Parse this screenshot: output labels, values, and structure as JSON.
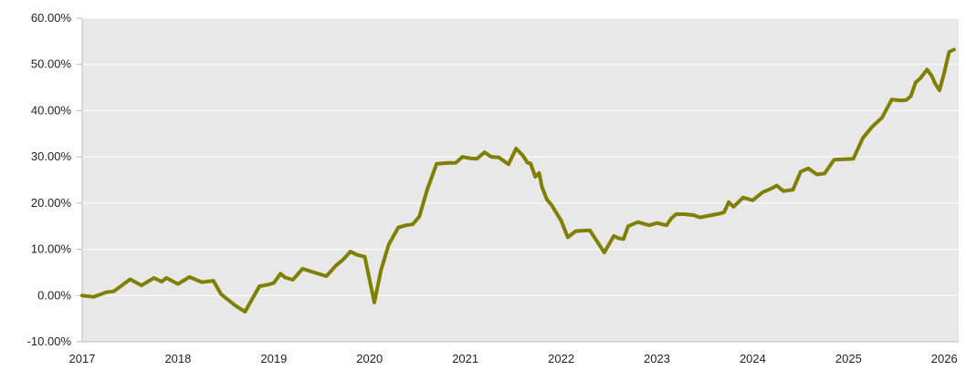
{
  "chart_data": {
    "type": "line",
    "title": "",
    "xlabel": "",
    "ylabel": "",
    "ylim": [
      -10,
      60
    ],
    "xlim": [
      2017.0,
      2026.15
    ],
    "grid": true,
    "legend": "none",
    "colors": {
      "line": "#808000",
      "plot_bg": "#e8e8e8",
      "grid": "#ffffff",
      "axis": "#bbbbbb"
    },
    "y_ticks": [
      {
        "value": 60,
        "label": "60.00%"
      },
      {
        "value": 50,
        "label": "50.00%"
      },
      {
        "value": 40,
        "label": "40.00%"
      },
      {
        "value": 30,
        "label": "30.00%"
      },
      {
        "value": 20,
        "label": "20.00%"
      },
      {
        "value": 10,
        "label": "10.00%"
      },
      {
        "value": 0,
        "label": "0.00%"
      },
      {
        "value": -10,
        "label": "-10.00%"
      }
    ],
    "x_ticks": [
      {
        "value": 2017,
        "label": "2017"
      },
      {
        "value": 2018,
        "label": "2018"
      },
      {
        "value": 2019,
        "label": "2019"
      },
      {
        "value": 2020,
        "label": "2020"
      },
      {
        "value": 2021,
        "label": "2021"
      },
      {
        "value": 2022,
        "label": "2022"
      },
      {
        "value": 2023,
        "label": "2023"
      },
      {
        "value": 2024,
        "label": "2024"
      },
      {
        "value": 2025,
        "label": "2025"
      },
      {
        "value": 2026,
        "label": "2026"
      }
    ],
    "series": [
      {
        "x": [
          2017.0,
          2017.12,
          2017.25,
          2017.33,
          2017.5,
          2017.62,
          2017.75,
          2017.83,
          2017.88,
          2018.0,
          2018.12,
          2018.25,
          2018.37,
          2018.45,
          2018.6,
          2018.7,
          2018.85,
          2018.95,
          2019.0,
          2019.07,
          2019.12,
          2019.2,
          2019.3,
          2019.45,
          2019.55,
          2019.65,
          2019.72,
          2019.8,
          2019.87,
          2019.95,
          2020.05,
          2020.12,
          2020.2,
          2020.3,
          2020.38,
          2020.45,
          2020.52,
          2020.6,
          2020.7,
          2020.82,
          2020.9,
          2020.97,
          2021.05,
          2021.12,
          2021.2,
          2021.27,
          2021.35,
          2021.45,
          2021.53,
          2021.6,
          2021.65,
          2021.68,
          2021.73,
          2021.77,
          2021.8,
          2021.85,
          2021.9,
          2022.0,
          2022.07,
          2022.15,
          2022.2,
          2022.3,
          2022.45,
          2022.55,
          2022.6,
          2022.65,
          2022.7,
          2022.8,
          2022.92,
          2023.0,
          2023.1,
          2023.15,
          2023.2,
          2023.28,
          2023.38,
          2023.45,
          2023.55,
          2023.65,
          2023.7,
          2023.75,
          2023.8,
          2023.9,
          2024.0,
          2024.1,
          2024.2,
          2024.25,
          2024.32,
          2024.42,
          2024.5,
          2024.58,
          2024.67,
          2024.75,
          2024.85,
          2024.95,
          2025.05,
          2025.15,
          2025.25,
          2025.35,
          2025.45,
          2025.55,
          2025.6,
          2025.65,
          2025.7,
          2025.75,
          2025.82,
          2025.87,
          2025.9,
          2025.95,
          2026.0,
          2026.05,
          2026.1
        ],
        "values": [
          0.0,
          -0.3,
          0.7,
          0.9,
          3.5,
          2.2,
          3.8,
          3.0,
          3.8,
          2.5,
          4.0,
          2.9,
          3.2,
          0.3,
          -2.2,
          -3.5,
          2.0,
          2.4,
          2.7,
          4.7,
          3.9,
          3.4,
          5.8,
          4.8,
          4.2,
          6.5,
          7.7,
          9.5,
          8.8,
          8.4,
          -1.5,
          5.5,
          11.0,
          14.7,
          15.2,
          15.4,
          17.1,
          22.8,
          28.5,
          28.7,
          28.7,
          30.0,
          29.7,
          29.6,
          31.0,
          30.0,
          29.9,
          28.4,
          31.8,
          30.3,
          28.7,
          28.6,
          25.7,
          26.5,
          23.5,
          20.8,
          19.6,
          16.2,
          12.6,
          13.9,
          14.0,
          14.1,
          9.3,
          12.9,
          12.4,
          12.2,
          15.0,
          15.9,
          15.2,
          15.7,
          15.2,
          16.7,
          17.6,
          17.6,
          17.4,
          16.9,
          17.3,
          17.7,
          18.0,
          20.2,
          19.2,
          21.2,
          20.6,
          22.3,
          23.2,
          23.8,
          22.6,
          22.9,
          26.8,
          27.5,
          26.2,
          26.4,
          29.4,
          29.5,
          29.6,
          34.1,
          36.6,
          38.5,
          42.4,
          42.2,
          42.3,
          43.1,
          46.1,
          47.0,
          48.9,
          47.5,
          46.0,
          44.4,
          48.3,
          52.7,
          53.2
        ]
      }
    ]
  }
}
